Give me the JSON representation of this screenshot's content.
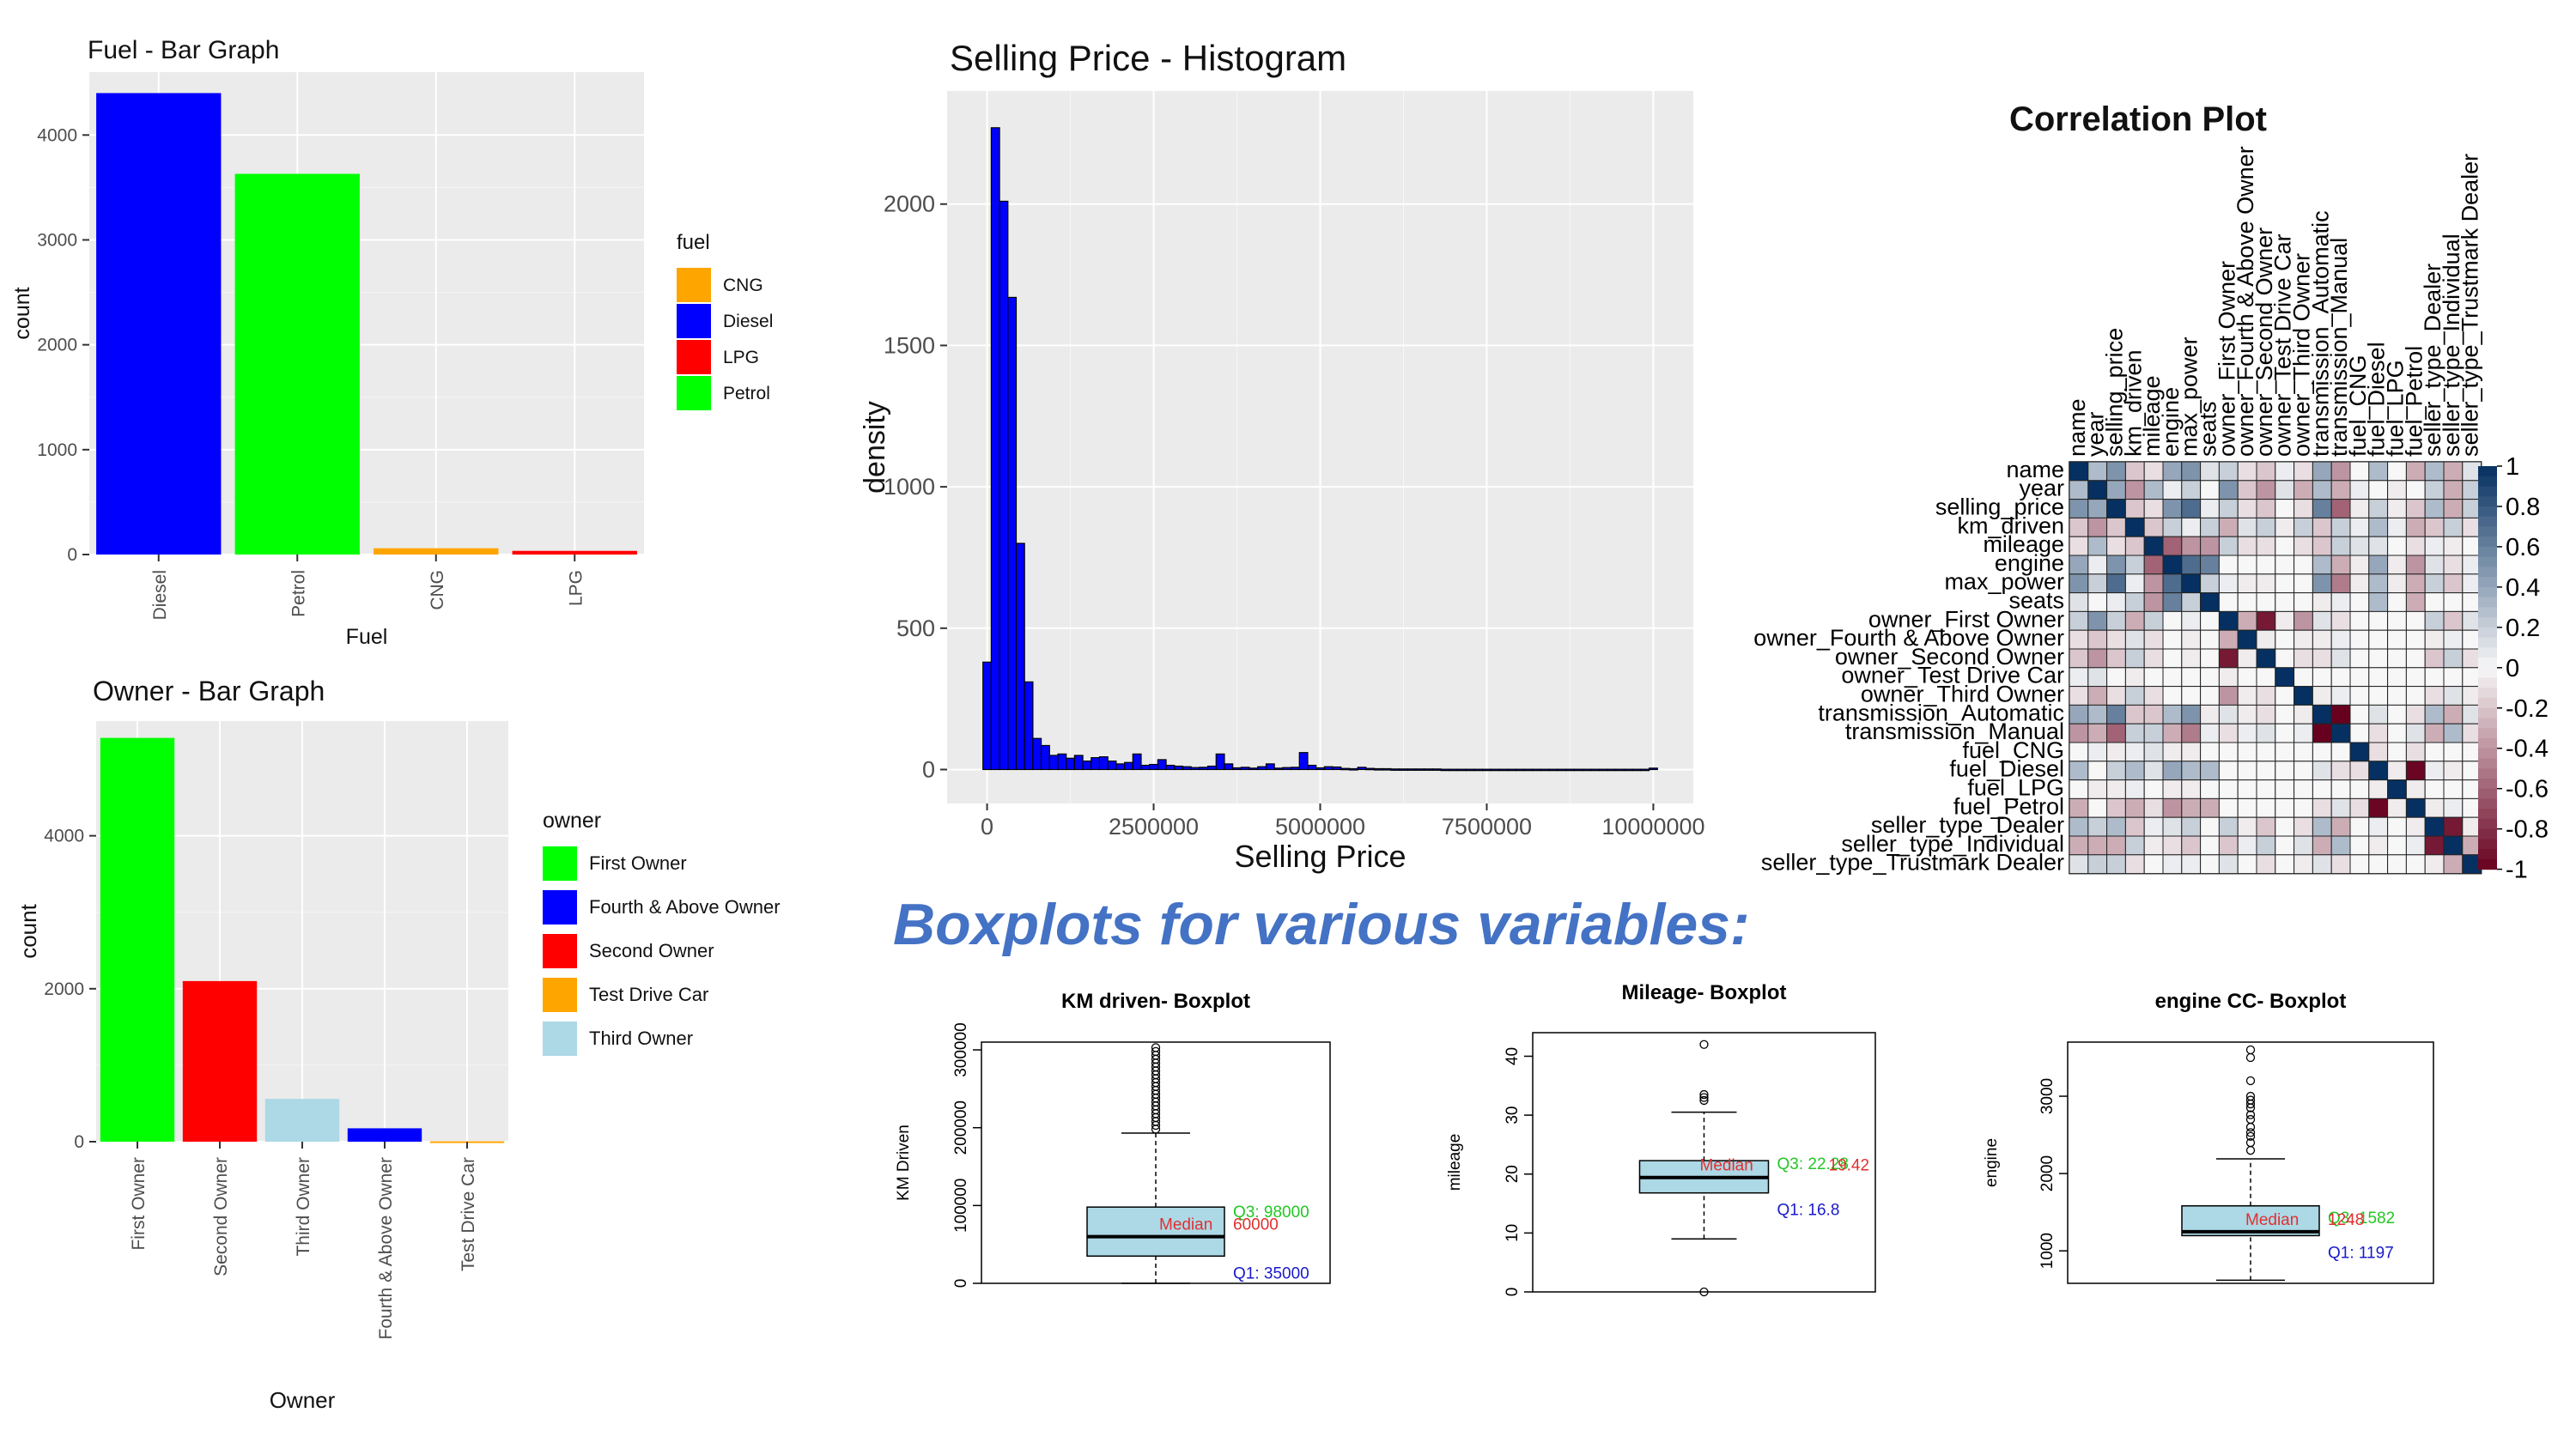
{
  "chart_data": [
    {
      "type": "bar",
      "title": "Fuel - Bar Graph",
      "xlabel": "Fuel",
      "ylabel": "count",
      "categories": [
        "Diesel",
        "Petrol",
        "CNG",
        "LPG"
      ],
      "values": [
        4400,
        3630,
        60,
        35
      ],
      "colors": [
        "#0000ff",
        "#00ff00",
        "#ffa500",
        "#ff0000"
      ],
      "ylim": [
        0,
        4600
      ],
      "yticks": [
        0,
        1000,
        2000,
        3000,
        4000
      ],
      "legend": {
        "title": "fuel",
        "position": "right",
        "items": [
          {
            "label": "CNG",
            "color": "#ffa500"
          },
          {
            "label": "Diesel",
            "color": "#0000ff"
          },
          {
            "label": "LPG",
            "color": "#ff0000"
          },
          {
            "label": "Petrol",
            "color": "#00ff00"
          }
        ]
      },
      "grid": true
    },
    {
      "type": "bar",
      "title": "Owner - Bar Graph",
      "xlabel": "Owner",
      "ylabel": "count",
      "categories": [
        "First Owner",
        "Second Owner",
        "Third Owner",
        "Fourth & Above Owner",
        "Test Drive Car"
      ],
      "values": [
        5280,
        2100,
        560,
        175,
        5
      ],
      "colors": [
        "#00ff00",
        "#ff0000",
        "#add8e6",
        "#0000ff",
        "#ffa500"
      ],
      "ylim": [
        0,
        5500
      ],
      "yticks": [
        0,
        2000,
        4000
      ],
      "legend": {
        "title": "owner",
        "position": "right",
        "items": [
          {
            "label": "First Owner",
            "color": "#00ff00"
          },
          {
            "label": "Fourth & Above Owner",
            "color": "#0000ff"
          },
          {
            "label": "Second Owner",
            "color": "#ff0000"
          },
          {
            "label": "Test Drive Car",
            "color": "#ffa500"
          },
          {
            "label": "Third Owner",
            "color": "#add8e6"
          }
        ]
      },
      "grid": true
    },
    {
      "type": "bar",
      "title": "Selling Price - Histogram",
      "xlabel": "Selling Price",
      "ylabel": "density",
      "bin_width": 125000,
      "x_start": -62500,
      "counts": [
        380,
        2270,
        2010,
        1670,
        800,
        310,
        110,
        85,
        50,
        55,
        40,
        50,
        30,
        42,
        45,
        30,
        20,
        25,
        55,
        15,
        18,
        35,
        15,
        12,
        10,
        7,
        8,
        12,
        55,
        20,
        6,
        8,
        5,
        10,
        20,
        5,
        7,
        8,
        60,
        15,
        6,
        10,
        9,
        4,
        3,
        8,
        4,
        3,
        3,
        2,
        2,
        2,
        2,
        2,
        2,
        1,
        1,
        1,
        1,
        1,
        1,
        1,
        1,
        1,
        1,
        1,
        1,
        1,
        1,
        1,
        1,
        1,
        1,
        1,
        1,
        1,
        1,
        1,
        1,
        1,
        5
      ],
      "xlim": [
        -600000,
        10600000
      ],
      "ylim": [
        -120,
        2400
      ],
      "xticks": [
        "0",
        "2500000",
        "5000000",
        "7500000",
        "10000000"
      ],
      "yticks": [
        "0",
        "500",
        "1000",
        "1500",
        "2000"
      ],
      "bar_color": "#0000ff",
      "grid": true
    },
    {
      "type": "heatmap",
      "title": "Correlation Plot",
      "variables": [
        "name",
        "year",
        "selling_price",
        "km_driven",
        "mileage",
        "engine",
        "max_power",
        "seats",
        "owner_First Owner",
        "owner_Fourth & Above Owner",
        "owner_Second Owner",
        "owner_Test Drive Car",
        "owner_Third Owner",
        "transmission_Automatic",
        "transmission_Manual",
        "fuel_CNG",
        "fuel_Diesel",
        "fuel_LPG",
        "fuel_Petrol",
        "seller_type_Dealer",
        "seller_type_Individual",
        "seller_type_Trustmark Dealer"
      ],
      "scale_ticks": [
        "1",
        "0.8",
        "0.6",
        "0.4",
        "0.2",
        "0",
        "-0.2",
        "-0.4",
        "-0.6",
        "-0.8",
        "-1"
      ],
      "range": [
        -1,
        1
      ],
      "matrix": [
        [
          1,
          0.3,
          0.5,
          -0.2,
          -0.1,
          0.4,
          0.5,
          0.1,
          0.2,
          -0.1,
          -0.2,
          0.05,
          -0.1,
          0.4,
          -0.4,
          0,
          0.3,
          0,
          -0.3,
          0.3,
          -0.3,
          0.1
        ],
        [
          0.3,
          1,
          0.4,
          -0.4,
          0.3,
          0.05,
          0.2,
          0,
          0.5,
          -0.2,
          -0.4,
          0.1,
          -0.3,
          0.3,
          -0.3,
          0.05,
          0,
          -0.05,
          0,
          0.2,
          -0.3,
          0.2
        ],
        [
          0.5,
          0.4,
          1,
          -0.2,
          -0.1,
          0.5,
          0.7,
          0.05,
          0.2,
          -0.1,
          -0.2,
          0,
          -0.1,
          0.6,
          -0.6,
          -0.05,
          0.2,
          -0.05,
          -0.2,
          0.3,
          -0.3,
          0.2
        ],
        [
          -0.2,
          -0.4,
          -0.2,
          1,
          -0.2,
          0.2,
          0.05,
          0.2,
          -0.3,
          0.1,
          0.2,
          -0.05,
          0.2,
          -0.2,
          0.2,
          0.05,
          0.3,
          0.05,
          -0.3,
          -0.2,
          0.2,
          -0.1
        ],
        [
          -0.1,
          0.3,
          -0.1,
          -0.2,
          1,
          -0.6,
          -0.4,
          -0.4,
          0.2,
          -0.1,
          -0.1,
          0,
          -0.1,
          -0.2,
          0.2,
          0.1,
          0.1,
          0,
          -0.1,
          0.05,
          -0.05,
          0
        ],
        [
          0.4,
          0.05,
          0.5,
          0.2,
          -0.6,
          1,
          0.7,
          0.6,
          0,
          0,
          0,
          0,
          0,
          0.3,
          -0.3,
          -0.05,
          0.4,
          -0.05,
          -0.4,
          0.1,
          -0.1,
          0.05
        ],
        [
          0.5,
          0.2,
          0.7,
          0.05,
          -0.4,
          0.7,
          1,
          0.2,
          0.05,
          -0.05,
          -0.05,
          0,
          0,
          0.5,
          -0.5,
          -0.05,
          0.3,
          -0.05,
          -0.3,
          0.2,
          -0.2,
          0.05
        ],
        [
          0.1,
          0,
          0.05,
          0.2,
          -0.4,
          0.6,
          0.2,
          1,
          0,
          0,
          0,
          0,
          0,
          -0.05,
          0.05,
          0,
          0.3,
          0,
          -0.3,
          0,
          0,
          0
        ],
        [
          0.2,
          0.5,
          0.2,
          -0.3,
          0.2,
          0,
          0.05,
          0,
          1,
          -0.3,
          -0.9,
          -0.05,
          -0.4,
          0.1,
          -0.1,
          0,
          0,
          0,
          0,
          0.2,
          -0.2,
          0.1
        ],
        [
          -0.1,
          -0.2,
          -0.1,
          0.1,
          -0.1,
          0,
          -0.05,
          0,
          -0.3,
          1,
          -0.05,
          0,
          -0.05,
          -0.05,
          0.05,
          0,
          0,
          0,
          0,
          -0.05,
          0.05,
          0
        ],
        [
          -0.2,
          -0.4,
          -0.2,
          0.2,
          -0.1,
          0,
          -0.05,
          0,
          -0.9,
          -0.05,
          1,
          0,
          -0.1,
          -0.1,
          0.1,
          0,
          0,
          0,
          0,
          -0.2,
          0.2,
          -0.1
        ],
        [
          0.05,
          0.1,
          0,
          -0.05,
          0,
          0,
          0,
          0,
          -0.05,
          0,
          0,
          1,
          0,
          0,
          0,
          0,
          0,
          0,
          0,
          0,
          0,
          0
        ],
        [
          -0.1,
          -0.3,
          -0.1,
          0.2,
          -0.1,
          0,
          0,
          0,
          -0.4,
          -0.05,
          -0.1,
          0,
          1,
          -0.05,
          0.05,
          0,
          0,
          0,
          0,
          -0.1,
          0.1,
          -0.05
        ],
        [
          0.4,
          0.3,
          0.6,
          -0.2,
          -0.2,
          0.3,
          0.5,
          -0.05,
          0.1,
          -0.05,
          -0.1,
          0,
          -0.05,
          1,
          -1,
          0,
          0.1,
          0,
          -0.1,
          0.3,
          -0.3,
          0.1
        ],
        [
          -0.4,
          -0.3,
          -0.6,
          0.2,
          0.2,
          -0.3,
          -0.5,
          0.05,
          -0.1,
          0.05,
          0.1,
          0,
          0.05,
          -1,
          1,
          0,
          -0.1,
          0,
          0.1,
          -0.3,
          0.3,
          -0.1
        ],
        [
          0,
          0.05,
          -0.05,
          0.05,
          0.1,
          -0.05,
          -0.05,
          0,
          0,
          0,
          0,
          0,
          0,
          0,
          0,
          1,
          -0.1,
          0,
          -0.1,
          0,
          0,
          0
        ],
        [
          0.3,
          0,
          0.2,
          0.3,
          0.1,
          0.4,
          0.3,
          0.3,
          0,
          0,
          0,
          0,
          0,
          0.1,
          -0.1,
          -0.1,
          1,
          -0.05,
          -0.98,
          0.05,
          -0.05,
          0
        ],
        [
          0,
          -0.05,
          -0.05,
          0.05,
          0,
          -0.05,
          -0.05,
          0,
          0,
          0,
          0,
          0,
          0,
          0,
          0,
          0,
          -0.05,
          1,
          -0.05,
          0,
          0,
          0
        ],
        [
          -0.3,
          0,
          -0.2,
          -0.3,
          -0.1,
          -0.4,
          -0.3,
          -0.3,
          0,
          0,
          0,
          0,
          0,
          -0.1,
          0.1,
          -0.1,
          -0.98,
          -0.05,
          1,
          -0.05,
          0.05,
          0
        ],
        [
          0.3,
          0.2,
          0.3,
          -0.2,
          0.05,
          0.1,
          0.2,
          0,
          0.2,
          -0.05,
          -0.2,
          0,
          -0.1,
          0.3,
          -0.3,
          0,
          0.05,
          0,
          -0.05,
          1,
          -0.9,
          -0.05
        ],
        [
          -0.3,
          -0.3,
          -0.3,
          0.2,
          -0.05,
          -0.1,
          -0.2,
          0,
          -0.2,
          0.05,
          0.2,
          0,
          0.1,
          -0.3,
          0.3,
          0,
          -0.05,
          0,
          0.05,
          -0.9,
          1,
          -0.3
        ],
        [
          0.1,
          0.2,
          0.2,
          -0.1,
          0,
          0.05,
          0.05,
          0,
          0.1,
          0,
          -0.1,
          0,
          -0.05,
          0.1,
          -0.1,
          0,
          0,
          0,
          0,
          -0.05,
          -0.3,
          1
        ]
      ]
    },
    {
      "type": "box",
      "title": "KM driven- Boxplot",
      "ylabel": "KM Driven",
      "ylim": [
        0,
        310000
      ],
      "yticks": [
        "0",
        "100000",
        "200000",
        "300000"
      ],
      "whisker_low": 0,
      "q1": 35000,
      "median": 60000,
      "q3": 98000,
      "whisker_high": 193000,
      "outliers": [
        198000,
        203000,
        208000,
        213000,
        218000,
        223000,
        228000,
        233000,
        238000,
        243000,
        248000,
        253000,
        258000,
        263000,
        268000,
        273000,
        278000,
        283000,
        288000,
        293000,
        298000,
        303000
      ],
      "labels": {
        "q3": "Q3: 98000",
        "median_word": "Median",
        "median_value": "60000",
        "q1": "Q1: 35000"
      }
    },
    {
      "type": "box",
      "title": "Mileage- Boxplot",
      "ylabel": "mileage",
      "ylim": [
        0,
        44
      ],
      "yticks": [
        "0",
        "10",
        "20",
        "30",
        "40"
      ],
      "whisker_low": 9,
      "q1": 16.8,
      "median": 19.42,
      "q3": 22.28,
      "whisker_high": 30.5,
      "outliers": [
        0,
        32.5,
        33.0,
        33.5,
        42
      ],
      "labels": {
        "q3": "Q3: 22.28",
        "median_word": "Median",
        "median_value": "19.42",
        "q1": "Q1: 16.8"
      }
    },
    {
      "type": "box",
      "title": "engine CC- Boxplot",
      "ylabel": "engine",
      "ylim": [
        580,
        3700
      ],
      "yticks": [
        "1000",
        "2000",
        "3000"
      ],
      "whisker_low": 620,
      "q1": 1197,
      "median": 1248,
      "q3": 1582,
      "whisker_high": 2190,
      "outliers": [
        2300,
        2400,
        2480,
        2530,
        2600,
        2700,
        2760,
        2850,
        2900,
        2950,
        3000,
        3200,
        3500,
        3600
      ],
      "labels": {
        "q3": "Q3: 1582",
        "median_word": "Median",
        "median_value": "1248",
        "q1": "Q1: 1197"
      }
    }
  ],
  "section_heading": "Boxplots for various variables:"
}
